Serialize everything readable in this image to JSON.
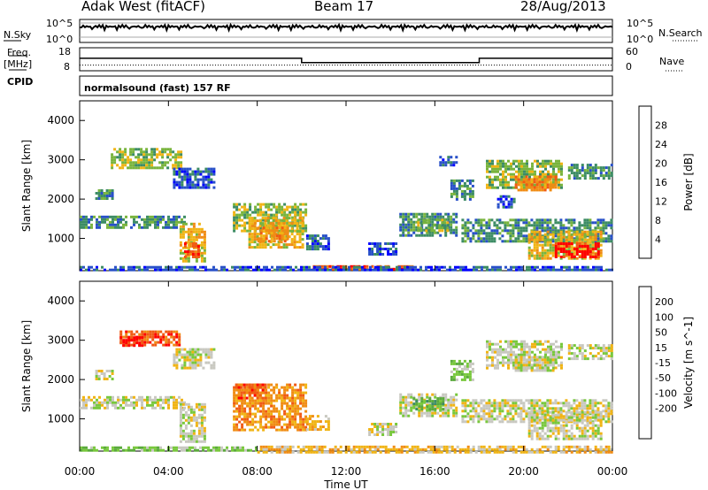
{
  "header": {
    "station": "Adak West (fitACF)",
    "beam": "Beam 17",
    "date": "28/Aug/2013"
  },
  "panels": {
    "nsky": {
      "label": "N.Sky",
      "tick_top": "10^5",
      "tick_bottom": "10^0"
    },
    "nsearch": {
      "label": "N.Search",
      "tick_top": "10^5",
      "tick_bottom": "10^0"
    },
    "freq": {
      "label_line1": "Freq.",
      "label_line2": "[MHz]",
      "ticks": [
        "18",
        "8"
      ]
    },
    "nave": {
      "label": "Nave",
      "ticks": [
        "60",
        "0"
      ]
    },
    "cpid": {
      "label": "CPID",
      "text": "normalsound (fast) 157 RF"
    }
  },
  "chart_data": [
    {
      "type": "heatmap",
      "name": "power",
      "ylabel": "Slant Range [km]",
      "y_ticks": [
        "1000",
        "2000",
        "3000",
        "4000"
      ],
      "ylim": [
        180,
        4500
      ],
      "x_ticks": [
        "00:00",
        "04:00",
        "08:00",
        "12:00",
        "16:00",
        "20:00",
        "00:00"
      ],
      "xlim": [
        0,
        24
      ],
      "colorbar": {
        "label": "Power [dB]",
        "ticks": [
          "4",
          "8",
          "12",
          "16",
          "20",
          "24",
          "28"
        ],
        "colors": [
          "#0000ff",
          "#2850c8",
          "#3c8c64",
          "#78b43c",
          "#f0b414",
          "#f08c14",
          "#f05a14",
          "#ff0000"
        ],
        "range": [
          0,
          32
        ]
      },
      "regions": [
        {
          "x0": 0.7,
          "x1": 1.5,
          "y0": 2000,
          "y1": 2250,
          "level": 2
        },
        {
          "x0": 0.0,
          "x1": 4.7,
          "y0": 1250,
          "y1": 1580,
          "level": 2
        },
        {
          "x0": 1.4,
          "x1": 4.6,
          "y0": 2800,
          "y1": 3300,
          "level": 3
        },
        {
          "x0": 4.5,
          "x1": 5.6,
          "y0": 400,
          "y1": 1400,
          "level": 4
        },
        {
          "x0": 4.7,
          "x1": 5.4,
          "y0": 550,
          "y1": 900,
          "level": 6
        },
        {
          "x0": 4.2,
          "x1": 6.1,
          "y0": 2300,
          "y1": 2800,
          "level": 1
        },
        {
          "x0": 6.9,
          "x1": 10.2,
          "y0": 1200,
          "y1": 1900,
          "level": 3
        },
        {
          "x0": 7.6,
          "x1": 10.0,
          "y0": 800,
          "y1": 1550,
          "level": 4
        },
        {
          "x0": 8.0,
          "x1": 9.4,
          "y0": 900,
          "y1": 1300,
          "level": 5
        },
        {
          "x0": 10.2,
          "x1": 11.2,
          "y0": 750,
          "y1": 1100,
          "level": 1
        },
        {
          "x0": 13.0,
          "x1": 14.3,
          "y0": 600,
          "y1": 900,
          "level": 1
        },
        {
          "x0": 14.4,
          "x1": 17.0,
          "y0": 1100,
          "y1": 1650,
          "level": 2
        },
        {
          "x0": 15.2,
          "x1": 16.6,
          "y0": 1200,
          "y1": 1500,
          "level": 3
        },
        {
          "x0": 17.2,
          "x1": 24.0,
          "y0": 900,
          "y1": 1500,
          "level": 2
        },
        {
          "x0": 20.2,
          "x1": 23.5,
          "y0": 500,
          "y1": 1200,
          "level": 4
        },
        {
          "x0": 21.4,
          "x1": 23.4,
          "y0": 500,
          "y1": 900,
          "level": 7
        },
        {
          "x0": 18.3,
          "x1": 21.7,
          "y0": 2300,
          "y1": 3000,
          "level": 3
        },
        {
          "x0": 19.6,
          "x1": 21.4,
          "y0": 2200,
          "y1": 2600,
          "level": 5
        },
        {
          "x0": 22.0,
          "x1": 24.0,
          "y0": 2500,
          "y1": 2900,
          "level": 2
        },
        {
          "x0": 16.7,
          "x1": 17.7,
          "y0": 2000,
          "y1": 2500,
          "level": 2
        },
        {
          "x0": 16.2,
          "x1": 17.0,
          "y0": 2850,
          "y1": 3100,
          "level": 1
        },
        {
          "x0": 18.8,
          "x1": 19.6,
          "y0": 1800,
          "y1": 2100,
          "level": 1
        },
        {
          "x0": 10.5,
          "x1": 15.0,
          "y0": 200,
          "y1": 320,
          "level": 6
        },
        {
          "x0": 0.0,
          "x1": 24.0,
          "y0": 180,
          "y1": 300,
          "level": 1
        }
      ]
    },
    {
      "type": "heatmap",
      "name": "velocity",
      "ylabel": "Slant Range [km]",
      "y_ticks": [
        "1000",
        "2000",
        "3000",
        "4000"
      ],
      "ylim": [
        180,
        4500
      ],
      "x_ticks": [
        "00:00",
        "04:00",
        "08:00",
        "12:00",
        "16:00",
        "20:00",
        "00:00"
      ],
      "xlim": [
        0,
        24
      ],
      "xlabel": "Time UT",
      "colorbar": {
        "label": "Velocity [m s^-1]",
        "ticks": [
          "200",
          "100",
          "50",
          "15",
          "-15",
          "-50",
          "-100",
          "-200"
        ],
        "colors": [
          "#2840b4",
          "#3c6ec8",
          "#3c8c64",
          "#5aaa3c",
          "#78c83c",
          "#c8c8c0",
          "#f0b414",
          "#f08c14",
          "#f05a14",
          "#ff0000"
        ],
        "range": [
          -250,
          250
        ]
      },
      "regions": [
        {
          "x0": 0.7,
          "x1": 1.5,
          "y0": 2000,
          "y1": 2250,
          "level": 5
        },
        {
          "x0": 0.0,
          "x1": 4.7,
          "y0": 1250,
          "y1": 1580,
          "level": 5
        },
        {
          "x0": 1.8,
          "x1": 4.5,
          "y0": 2850,
          "y1": 3250,
          "level": 8
        },
        {
          "x0": 1.8,
          "x1": 2.8,
          "y0": 2850,
          "y1": 3100,
          "level": 9
        },
        {
          "x0": 4.5,
          "x1": 5.6,
          "y0": 400,
          "y1": 1400,
          "level": 5
        },
        {
          "x0": 4.2,
          "x1": 6.1,
          "y0": 2300,
          "y1": 2800,
          "level": 5
        },
        {
          "x0": 6.9,
          "x1": 10.2,
          "y0": 700,
          "y1": 1900,
          "level": 7
        },
        {
          "x0": 7.0,
          "x1": 8.4,
          "y0": 1500,
          "y1": 1900,
          "level": 8
        },
        {
          "x0": 10.2,
          "x1": 11.2,
          "y0": 750,
          "y1": 1100,
          "level": 6
        },
        {
          "x0": 13.0,
          "x1": 14.3,
          "y0": 600,
          "y1": 900,
          "level": 5
        },
        {
          "x0": 14.4,
          "x1": 17.0,
          "y0": 1100,
          "y1": 1650,
          "level": 5
        },
        {
          "x0": 15.0,
          "x1": 16.4,
          "y0": 1250,
          "y1": 1550,
          "level": 3
        },
        {
          "x0": 17.2,
          "x1": 24.0,
          "y0": 900,
          "y1": 1500,
          "level": 5
        },
        {
          "x0": 20.2,
          "x1": 23.5,
          "y0": 500,
          "y1": 1200,
          "level": 5
        },
        {
          "x0": 18.3,
          "x1": 21.7,
          "y0": 2300,
          "y1": 3000,
          "level": 5
        },
        {
          "x0": 22.0,
          "x1": 24.0,
          "y0": 2500,
          "y1": 2900,
          "level": 5
        },
        {
          "x0": 16.7,
          "x1": 17.7,
          "y0": 2000,
          "y1": 2500,
          "level": 4
        },
        {
          "x0": 19.6,
          "x1": 21.4,
          "y0": 2200,
          "y1": 2600,
          "level": 5
        },
        {
          "x0": 8.0,
          "x1": 24.0,
          "y0": 180,
          "y1": 320,
          "level": 6
        },
        {
          "x0": 0.0,
          "x1": 8.0,
          "y0": 180,
          "y1": 300,
          "level": 4
        }
      ]
    }
  ],
  "freq_trace": {
    "segments": [
      {
        "x0": 0,
        "x1": 10,
        "mhz": 13.5
      },
      {
        "x0": 10,
        "x1": 18,
        "mhz": 11.3
      },
      {
        "x0": 18,
        "x1": 24,
        "mhz": 13.5
      }
    ]
  },
  "nave_trace": {
    "value": 12
  }
}
